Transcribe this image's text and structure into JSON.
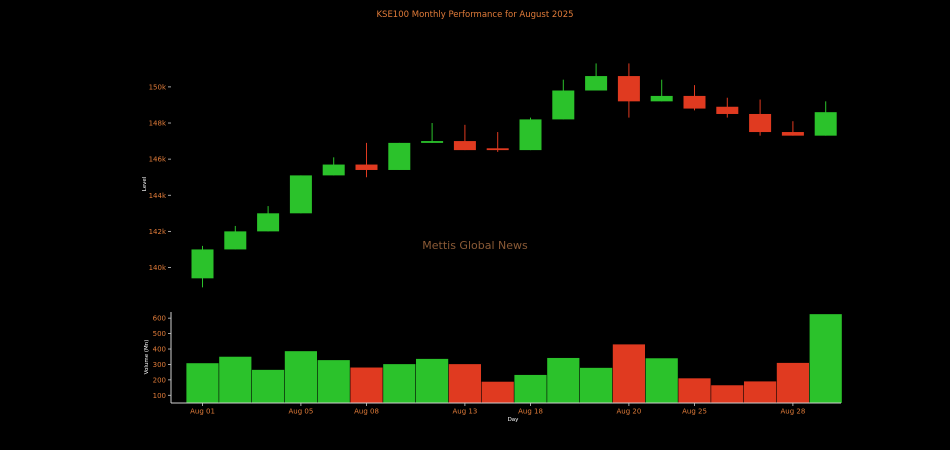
{
  "chart_data": {
    "type": "candlestick",
    "title": "KSE100 Monthly Performance for August 2025",
    "watermark": "Mettis Global News",
    "price_axis": {
      "ylabel": "Level",
      "ylim": [
        138200,
        151600
      ],
      "ticks": [
        140000,
        142000,
        144000,
        146000,
        148000,
        150000
      ],
      "tick_labels": [
        "140k",
        "142k",
        "144k",
        "146k",
        "148k",
        "150k"
      ]
    },
    "volume_axis": {
      "ylabel": "Volume (Mn)",
      "ylim": [
        50,
        640
      ],
      "ticks": [
        100,
        200,
        300,
        400,
        500,
        600
      ],
      "tick_labels": [
        "100",
        "200",
        "300",
        "400",
        "500",
        "600"
      ]
    },
    "x_axis": {
      "xlabel": "Day",
      "tick_labels": [
        "Aug 01",
        "Aug 05",
        "Aug 08",
        "Aug 13",
        "Aug 18",
        "Aug 20",
        "Aug 25",
        "Aug 28"
      ],
      "tick_indices": [
        0,
        3,
        5,
        8,
        10,
        13,
        15,
        18
      ]
    },
    "colors": {
      "up": "#2bc22b",
      "down": "#e03a20"
    },
    "candles": [
      {
        "open": 139400,
        "high": 141200,
        "low": 138900,
        "close": 141000,
        "volume": 308
      },
      {
        "open": 141000,
        "high": 142300,
        "low": 141000,
        "close": 142000,
        "volume": 350
      },
      {
        "open": 142000,
        "high": 143400,
        "low": 142000,
        "close": 143000,
        "volume": 265
      },
      {
        "open": 143000,
        "high": 145100,
        "low": 143000,
        "close": 145100,
        "volume": 386
      },
      {
        "open": 145100,
        "high": 146100,
        "low": 145100,
        "close": 145700,
        "volume": 328
      },
      {
        "open": 145700,
        "high": 146900,
        "low": 145000,
        "close": 145400,
        "volume": 280
      },
      {
        "open": 145400,
        "high": 146900,
        "low": 145400,
        "close": 146900,
        "volume": 302
      },
      {
        "open": 146900,
        "high": 148000,
        "low": 146900,
        "close": 147000,
        "volume": 336
      },
      {
        "open": 147000,
        "high": 147900,
        "low": 146500,
        "close": 146500,
        "volume": 302
      },
      {
        "open": 146600,
        "high": 147500,
        "low": 146400,
        "close": 146500,
        "volume": 188
      },
      {
        "open": 146500,
        "high": 148300,
        "low": 146500,
        "close": 148200,
        "volume": 232
      },
      {
        "open": 148200,
        "high": 150400,
        "low": 148200,
        "close": 149800,
        "volume": 342
      },
      {
        "open": 149800,
        "high": 151300,
        "low": 149800,
        "close": 150600,
        "volume": 278
      },
      {
        "open": 150600,
        "high": 151300,
        "low": 148300,
        "close": 149200,
        "volume": 430
      },
      {
        "open": 149200,
        "high": 150400,
        "low": 149200,
        "close": 149500,
        "volume": 340
      },
      {
        "open": 149500,
        "high": 150100,
        "low": 148700,
        "close": 148800,
        "volume": 210
      },
      {
        "open": 148900,
        "high": 149400,
        "low": 148300,
        "close": 148500,
        "volume": 165
      },
      {
        "open": 148500,
        "high": 149300,
        "low": 147300,
        "close": 147500,
        "volume": 190
      },
      {
        "open": 147500,
        "high": 148100,
        "low": 147300,
        "close": 147300,
        "volume": 310
      },
      {
        "open": 147300,
        "high": 149200,
        "low": 147300,
        "close": 148600,
        "volume": 626
      }
    ]
  }
}
